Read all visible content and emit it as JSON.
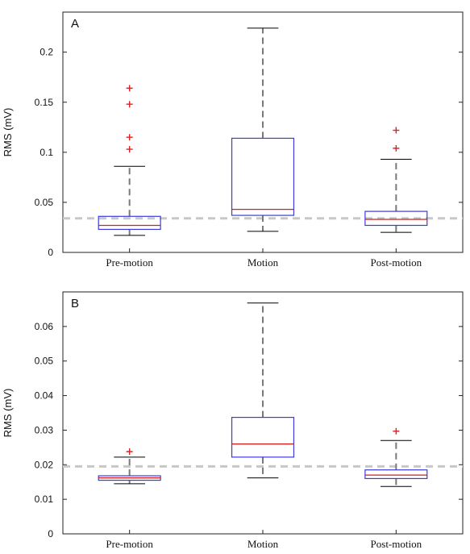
{
  "chart_data": [
    {
      "type": "box",
      "panel_label": "A",
      "ylabel": "RMS (mV)",
      "ylim": [
        0,
        0.24
      ],
      "yticks": [
        0,
        0.05,
        0.1,
        0.15,
        0.2
      ],
      "ytick_labels": [
        "0",
        "0.05",
        "0.1",
        "0.15",
        "0.2"
      ],
      "categories": [
        "Pre-motion",
        "Motion",
        "Post-motion"
      ],
      "boxes": [
        {
          "whisker_low": 0.017,
          "q1": 0.023,
          "median": 0.027,
          "q3": 0.036,
          "whisker_high": 0.086,
          "outliers": [
            0.103,
            0.115,
            0.148,
            0.164
          ]
        },
        {
          "whisker_low": 0.021,
          "q1": 0.037,
          "median": 0.043,
          "q3": 0.114,
          "whisker_high": 0.224,
          "outliers": []
        },
        {
          "whisker_low": 0.02,
          "q1": 0.027,
          "median": 0.033,
          "q3": 0.041,
          "whisker_high": 0.093,
          "outliers": [
            0.104,
            0.122
          ]
        }
      ],
      "reference_line": 0.034
    },
    {
      "type": "box",
      "panel_label": "B",
      "ylabel": "RMS (mV)",
      "ylim": [
        0,
        0.07
      ],
      "yticks": [
        0,
        0.01,
        0.02,
        0.03,
        0.04,
        0.05,
        0.06
      ],
      "ytick_labels": [
        "0",
        "0.01",
        "0.02",
        "0.03",
        "0.04",
        "0.05",
        "0.06"
      ],
      "categories": [
        "Pre-motion",
        "Motion",
        "Post-motion"
      ],
      "boxes": [
        {
          "whisker_low": 0.0145,
          "q1": 0.0155,
          "median": 0.0162,
          "q3": 0.0168,
          "whisker_high": 0.0222,
          "outliers": [
            0.0238
          ]
        },
        {
          "whisker_low": 0.0162,
          "q1": 0.0222,
          "median": 0.026,
          "q3": 0.0337,
          "whisker_high": 0.0668,
          "outliers": []
        },
        {
          "whisker_low": 0.0137,
          "q1": 0.016,
          "median": 0.017,
          "q3": 0.0185,
          "whisker_high": 0.027,
          "outliers": [
            0.0297
          ]
        }
      ],
      "reference_line": 0.0195
    }
  ],
  "colors": {
    "box_edge": "#3b3bdc",
    "median": "#d02020",
    "whisker": "#7a7a7a",
    "cap": "#000000",
    "outlier": "#e02020",
    "reference": "#c8c8c8",
    "axis": "#222222"
  }
}
